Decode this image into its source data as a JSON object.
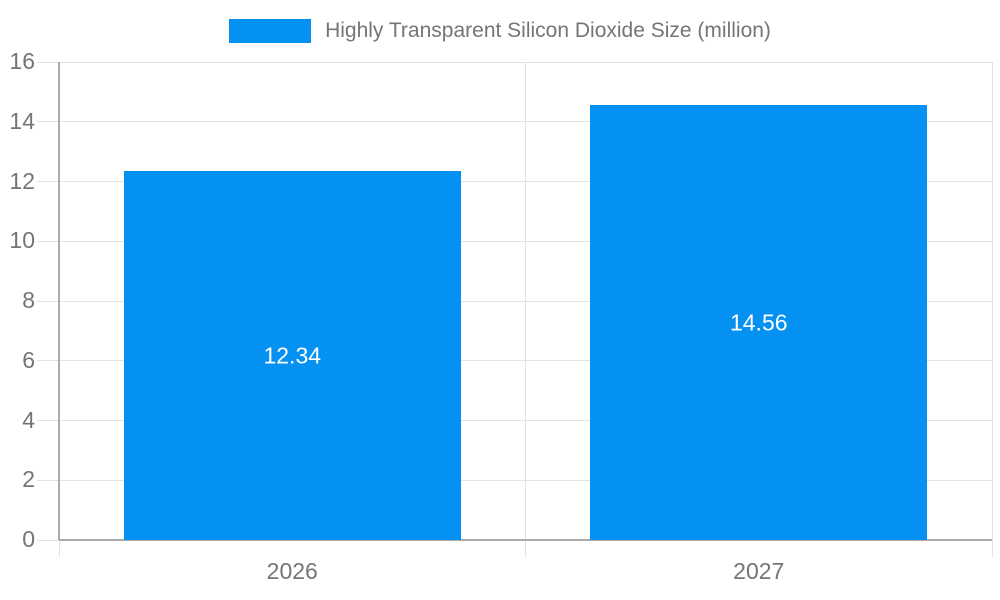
{
  "chart_data": {
    "type": "bar",
    "title": "Highly Transparent Silicon Dioxide Size (million)",
    "legend_entries": [
      "Highly Transparent Silicon Dioxide Size (million)"
    ],
    "legend_position": "top-center",
    "categories": [
      "2026",
      "2027"
    ],
    "series": [
      {
        "name": "Highly Transparent Silicon Dioxide Size (million)",
        "values": [
          12.34,
          14.56
        ]
      }
    ],
    "value_labels": [
      "12.34",
      "14.56"
    ],
    "xlabel": "",
    "ylabel": "",
    "ylim": [
      0,
      16
    ],
    "ytick_interval": 2,
    "ytick_labels": [
      "0",
      "2",
      "4",
      "6",
      "8",
      "10",
      "12",
      "14",
      "16"
    ],
    "grid": true
  },
  "colors": {
    "bar": "#0591f2",
    "axis_text": "#757575",
    "legend_text": "#757575",
    "grid_line": "#e2e2e2",
    "axis_line": "#ababab",
    "value_label_text": "#ffffff",
    "background": "#ffffff"
  }
}
